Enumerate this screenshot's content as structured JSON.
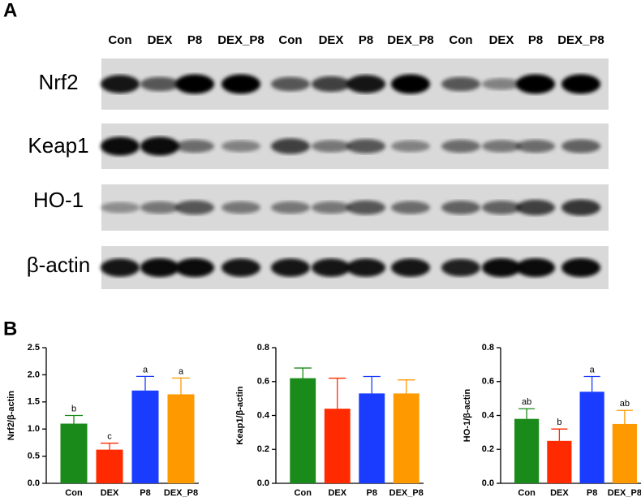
{
  "panel_a": {
    "label": "A",
    "lanes": [
      "Con",
      "DEX",
      "P8",
      "DEX_P8",
      "Con",
      "DEX",
      "P8",
      "DEX_P8",
      "Con",
      "DEX",
      "P8",
      "DEX_P8"
    ],
    "proteins": [
      "Nrf2",
      "Keap1",
      "HO-1",
      "β-actin"
    ]
  },
  "panel_b": {
    "label": "B"
  },
  "chart_data": [
    {
      "type": "bar",
      "y_label": "Nrf2/β-actin",
      "categories": [
        "Con",
        "DEX",
        "P8",
        "DEX_P8"
      ],
      "values": [
        1.1,
        0.62,
        1.71,
        1.64
      ],
      "errors": [
        0.15,
        0.12,
        0.26,
        0.3
      ],
      "annotations": [
        "b",
        "c",
        "a",
        "a"
      ],
      "colors": [
        "#1a8a1a",
        "#ff2a00",
        "#1a3cff",
        "#ff9900"
      ],
      "ylim": [
        0,
        2.5
      ],
      "yticks": [
        {
          "value": 0,
          "label": "0.0"
        },
        {
          "value": 0.5,
          "label": "0.5"
        },
        {
          "value": 1,
          "label": "1.0"
        },
        {
          "value": 1.5,
          "label": "1.5"
        },
        {
          "value": 2,
          "label": "2.0"
        },
        {
          "value": 2.5,
          "label": "2.5"
        }
      ]
    },
    {
      "type": "bar",
      "y_label": "Keap1/β-actin",
      "categories": [
        "Con",
        "DEX",
        "P8",
        "DEX_P8"
      ],
      "values": [
        0.62,
        0.44,
        0.53,
        0.53
      ],
      "errors": [
        0.06,
        0.18,
        0.1,
        0.08
      ],
      "colors": [
        "#1a8a1a",
        "#ff2a00",
        "#1a3cff",
        "#ff9900"
      ],
      "ylim": [
        0,
        0.8
      ],
      "yticks": [
        {
          "value": 0,
          "label": "0.0"
        },
        {
          "value": 0.2,
          "label": "0.2"
        },
        {
          "value": 0.4,
          "label": "0.4"
        },
        {
          "value": 0.6,
          "label": "0.6"
        },
        {
          "value": 0.8,
          "label": "0.8"
        }
      ]
    },
    {
      "type": "bar",
      "y_label": "HO-1/β-actin",
      "categories": [
        "Con",
        "DEX",
        "P8",
        "DEX_P8"
      ],
      "values": [
        0.38,
        0.25,
        0.54,
        0.35
      ],
      "errors": [
        0.06,
        0.07,
        0.09,
        0.08
      ],
      "annotations": [
        "ab",
        "b",
        "a",
        "ab"
      ],
      "colors": [
        "#1a8a1a",
        "#ff2a00",
        "#1a3cff",
        "#ff9900"
      ],
      "ylim": [
        0,
        0.8
      ],
      "yticks": [
        {
          "value": 0,
          "label": "0.0"
        },
        {
          "value": 0.2,
          "label": "0.2"
        },
        {
          "value": 0.4,
          "label": "0.4"
        },
        {
          "value": 0.6,
          "label": "0.6"
        },
        {
          "value": 0.8,
          "label": "0.8"
        }
      ]
    }
  ]
}
